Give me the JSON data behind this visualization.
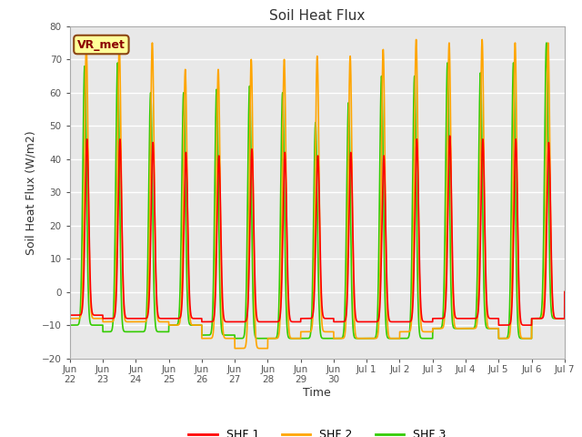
{
  "title": "Soil Heat Flux",
  "ylabel": "Soil Heat Flux (W/m2)",
  "xlabel": "Time",
  "ylim": [
    -20,
    80
  ],
  "xtick_labels": [
    "Jun\n22",
    "Jun\n23",
    "Jun\n24",
    "Jun\n25",
    "Jun\n26",
    "Jun\n27",
    "Jun\n28",
    "Jun\n29",
    "Jun\n30",
    "Jul 1",
    "Jul 2",
    "Jul 3",
    "Jul 4",
    "Jul 5",
    "Jul 6",
    "Jul 7"
  ],
  "legend_labels": [
    "SHF 1",
    "SHF 2",
    "SHF 3"
  ],
  "colors": [
    "#ff0000",
    "#ffa500",
    "#33cc00"
  ],
  "annotation_text": "VR_met",
  "annotation_box_color": "#ffff99",
  "annotation_border_color": "#8B4513",
  "background_color": "#e8e8e8",
  "grid_color": "#ffffff",
  "n_days": 16,
  "shf1_peaks": [
    46,
    46,
    45,
    42,
    41,
    43,
    42,
    41,
    42,
    41,
    46,
    47,
    46,
    46,
    45
  ],
  "shf2_peaks": [
    74,
    74,
    75,
    67,
    67,
    70,
    70,
    71,
    71,
    73,
    76,
    75,
    76,
    75,
    75
  ],
  "shf3_peaks": [
    68,
    69,
    60,
    60,
    61,
    62,
    60,
    51,
    57,
    65,
    65,
    69,
    66,
    69,
    75
  ],
  "shf1_troughs": [
    -7,
    -8,
    -8,
    -8,
    -9,
    -9,
    -9,
    -8,
    -9,
    -9,
    -9,
    -8,
    -8,
    -10,
    -8
  ],
  "shf2_troughs": [
    -8,
    -9,
    -9,
    -10,
    -14,
    -17,
    -14,
    -12,
    -14,
    -14,
    -12,
    -11,
    -11,
    -14,
    -8
  ],
  "shf3_troughs": [
    -10,
    -12,
    -12,
    -10,
    -13,
    -14,
    -14,
    -14,
    -14,
    -14,
    -14,
    -11,
    -11,
    -14,
    -8
  ],
  "shf1_phase": 0.52,
  "shf2_phase": 0.5,
  "shf3_phase": 0.45
}
